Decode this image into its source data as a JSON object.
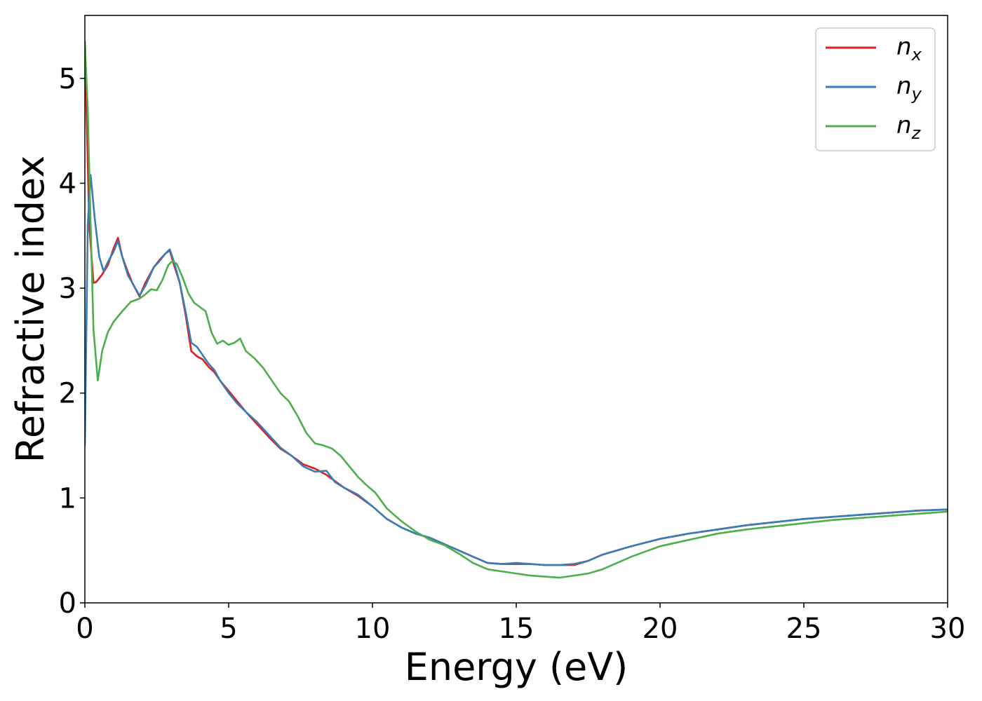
{
  "chart_data": {
    "type": "line",
    "title": "",
    "xlabel": "Energy (eV)",
    "ylabel": "Refractive index",
    "xlim": [
      0,
      30
    ],
    "ylim": [
      0,
      5.6
    ],
    "xticks": [
      0,
      5,
      10,
      15,
      20,
      25,
      30
    ],
    "yticks": [
      0,
      1,
      2,
      3,
      4,
      5
    ],
    "grid": false,
    "legend_position": "top-right",
    "series": [
      {
        "name": "n",
        "subscript": "x",
        "color": "#e41a1c",
        "x": [
          0,
          0.05,
          0.15,
          0.3,
          0.4,
          0.6,
          0.8,
          1.0,
          1.15,
          1.3,
          1.5,
          1.65,
          1.9,
          2.1,
          2.4,
          2.6,
          2.8,
          2.95,
          3.1,
          3.3,
          3.5,
          3.7,
          3.9,
          4.1,
          4.3,
          4.5,
          4.7,
          5.0,
          5.3,
          5.6,
          6.0,
          6.4,
          6.8,
          7.2,
          7.6,
          8.0,
          8.4,
          8.7,
          9.0,
          9.5,
          10.0,
          10.5,
          11.0,
          11.5,
          12.0,
          12.5,
          13.0,
          13.5,
          14.0,
          14.5,
          15.0,
          15.5,
          16.0,
          16.5,
          17.0,
          17.5,
          18.0,
          19.0,
          20.0,
          21.0,
          22.0,
          23.0,
          24.0,
          25.0,
          26.0,
          27.0,
          28.0,
          29.0,
          30.0
        ],
        "y": [
          5.35,
          4.8,
          3.6,
          3.05,
          3.06,
          3.13,
          3.22,
          3.38,
          3.48,
          3.3,
          3.15,
          3.05,
          2.92,
          3.05,
          3.2,
          3.27,
          3.33,
          3.36,
          3.22,
          3.05,
          2.75,
          2.4,
          2.35,
          2.32,
          2.25,
          2.2,
          2.12,
          2.02,
          1.92,
          1.82,
          1.7,
          1.58,
          1.47,
          1.4,
          1.32,
          1.28,
          1.22,
          1.16,
          1.1,
          1.02,
          0.92,
          0.8,
          0.72,
          0.66,
          0.62,
          0.56,
          0.5,
          0.44,
          0.38,
          0.37,
          0.37,
          0.37,
          0.36,
          0.36,
          0.36,
          0.4,
          0.46,
          0.54,
          0.61,
          0.66,
          0.7,
          0.74,
          0.77,
          0.8,
          0.82,
          0.84,
          0.86,
          0.88,
          0.89
        ]
      },
      {
        "name": "n",
        "subscript": "y",
        "color": "#377eb8",
        "x": [
          0,
          0.1,
          0.2,
          0.35,
          0.5,
          0.65,
          0.8,
          1.0,
          1.15,
          1.3,
          1.5,
          1.65,
          1.9,
          2.1,
          2.4,
          2.6,
          2.8,
          2.95,
          3.1,
          3.3,
          3.5,
          3.7,
          3.9,
          4.1,
          4.3,
          4.5,
          4.7,
          5.0,
          5.3,
          5.6,
          6.0,
          6.4,
          6.8,
          7.2,
          7.6,
          8.0,
          8.4,
          8.7,
          9.0,
          9.5,
          10.0,
          10.5,
          11.0,
          11.5,
          12.0,
          12.5,
          13.0,
          13.5,
          14.0,
          14.5,
          15.0,
          15.5,
          16.0,
          16.5,
          17.0,
          17.5,
          18.0,
          19.0,
          20.0,
          21.0,
          22.0,
          23.0,
          24.0,
          25.0,
          26.0,
          27.0,
          28.0,
          29.0,
          30.0
        ],
        "y": [
          1.5,
          3.6,
          4.08,
          3.65,
          3.3,
          3.16,
          3.25,
          3.35,
          3.45,
          3.3,
          3.12,
          3.05,
          2.93,
          3.02,
          3.2,
          3.26,
          3.33,
          3.37,
          3.25,
          3.05,
          2.78,
          2.48,
          2.44,
          2.36,
          2.28,
          2.22,
          2.12,
          2.0,
          1.9,
          1.82,
          1.72,
          1.6,
          1.48,
          1.4,
          1.3,
          1.25,
          1.26,
          1.15,
          1.1,
          1.03,
          0.92,
          0.8,
          0.72,
          0.66,
          0.62,
          0.56,
          0.5,
          0.44,
          0.38,
          0.37,
          0.38,
          0.37,
          0.36,
          0.36,
          0.37,
          0.4,
          0.46,
          0.54,
          0.61,
          0.66,
          0.7,
          0.74,
          0.77,
          0.8,
          0.82,
          0.84,
          0.86,
          0.88,
          0.89
        ]
      },
      {
        "name": "n",
        "subscript": "z",
        "color": "#4daf4a",
        "x": [
          0,
          0.1,
          0.2,
          0.3,
          0.45,
          0.6,
          0.8,
          1.0,
          1.3,
          1.6,
          1.9,
          2.1,
          2.3,
          2.5,
          2.7,
          2.9,
          3.05,
          3.2,
          3.4,
          3.6,
          3.8,
          4.0,
          4.2,
          4.4,
          4.6,
          4.8,
          5.0,
          5.2,
          5.4,
          5.6,
          5.9,
          6.2,
          6.5,
          6.8,
          7.1,
          7.4,
          7.7,
          8.0,
          8.3,
          8.6,
          8.9,
          9.2,
          9.5,
          9.8,
          10.1,
          10.5,
          11.0,
          11.5,
          12.0,
          12.5,
          13.0,
          13.5,
          14.0,
          14.5,
          15.0,
          15.5,
          16.0,
          16.5,
          17.0,
          17.5,
          18.0,
          19.0,
          20.0,
          21.0,
          22.0,
          23.0,
          24.0,
          25.0,
          26.0,
          27.0,
          28.0,
          29.0,
          30.0
        ],
        "y": [
          5.35,
          4.7,
          3.6,
          2.6,
          2.12,
          2.4,
          2.58,
          2.68,
          2.78,
          2.87,
          2.9,
          2.94,
          2.99,
          2.98,
          3.08,
          3.22,
          3.26,
          3.23,
          3.1,
          2.95,
          2.86,
          2.82,
          2.78,
          2.58,
          2.47,
          2.5,
          2.46,
          2.48,
          2.52,
          2.4,
          2.33,
          2.24,
          2.12,
          2.0,
          1.92,
          1.78,
          1.62,
          1.52,
          1.5,
          1.47,
          1.4,
          1.3,
          1.2,
          1.12,
          1.05,
          0.9,
          0.78,
          0.68,
          0.6,
          0.55,
          0.47,
          0.38,
          0.32,
          0.3,
          0.28,
          0.26,
          0.25,
          0.24,
          0.26,
          0.28,
          0.32,
          0.44,
          0.54,
          0.6,
          0.66,
          0.7,
          0.73,
          0.76,
          0.79,
          0.81,
          0.83,
          0.85,
          0.87
        ]
      }
    ]
  }
}
